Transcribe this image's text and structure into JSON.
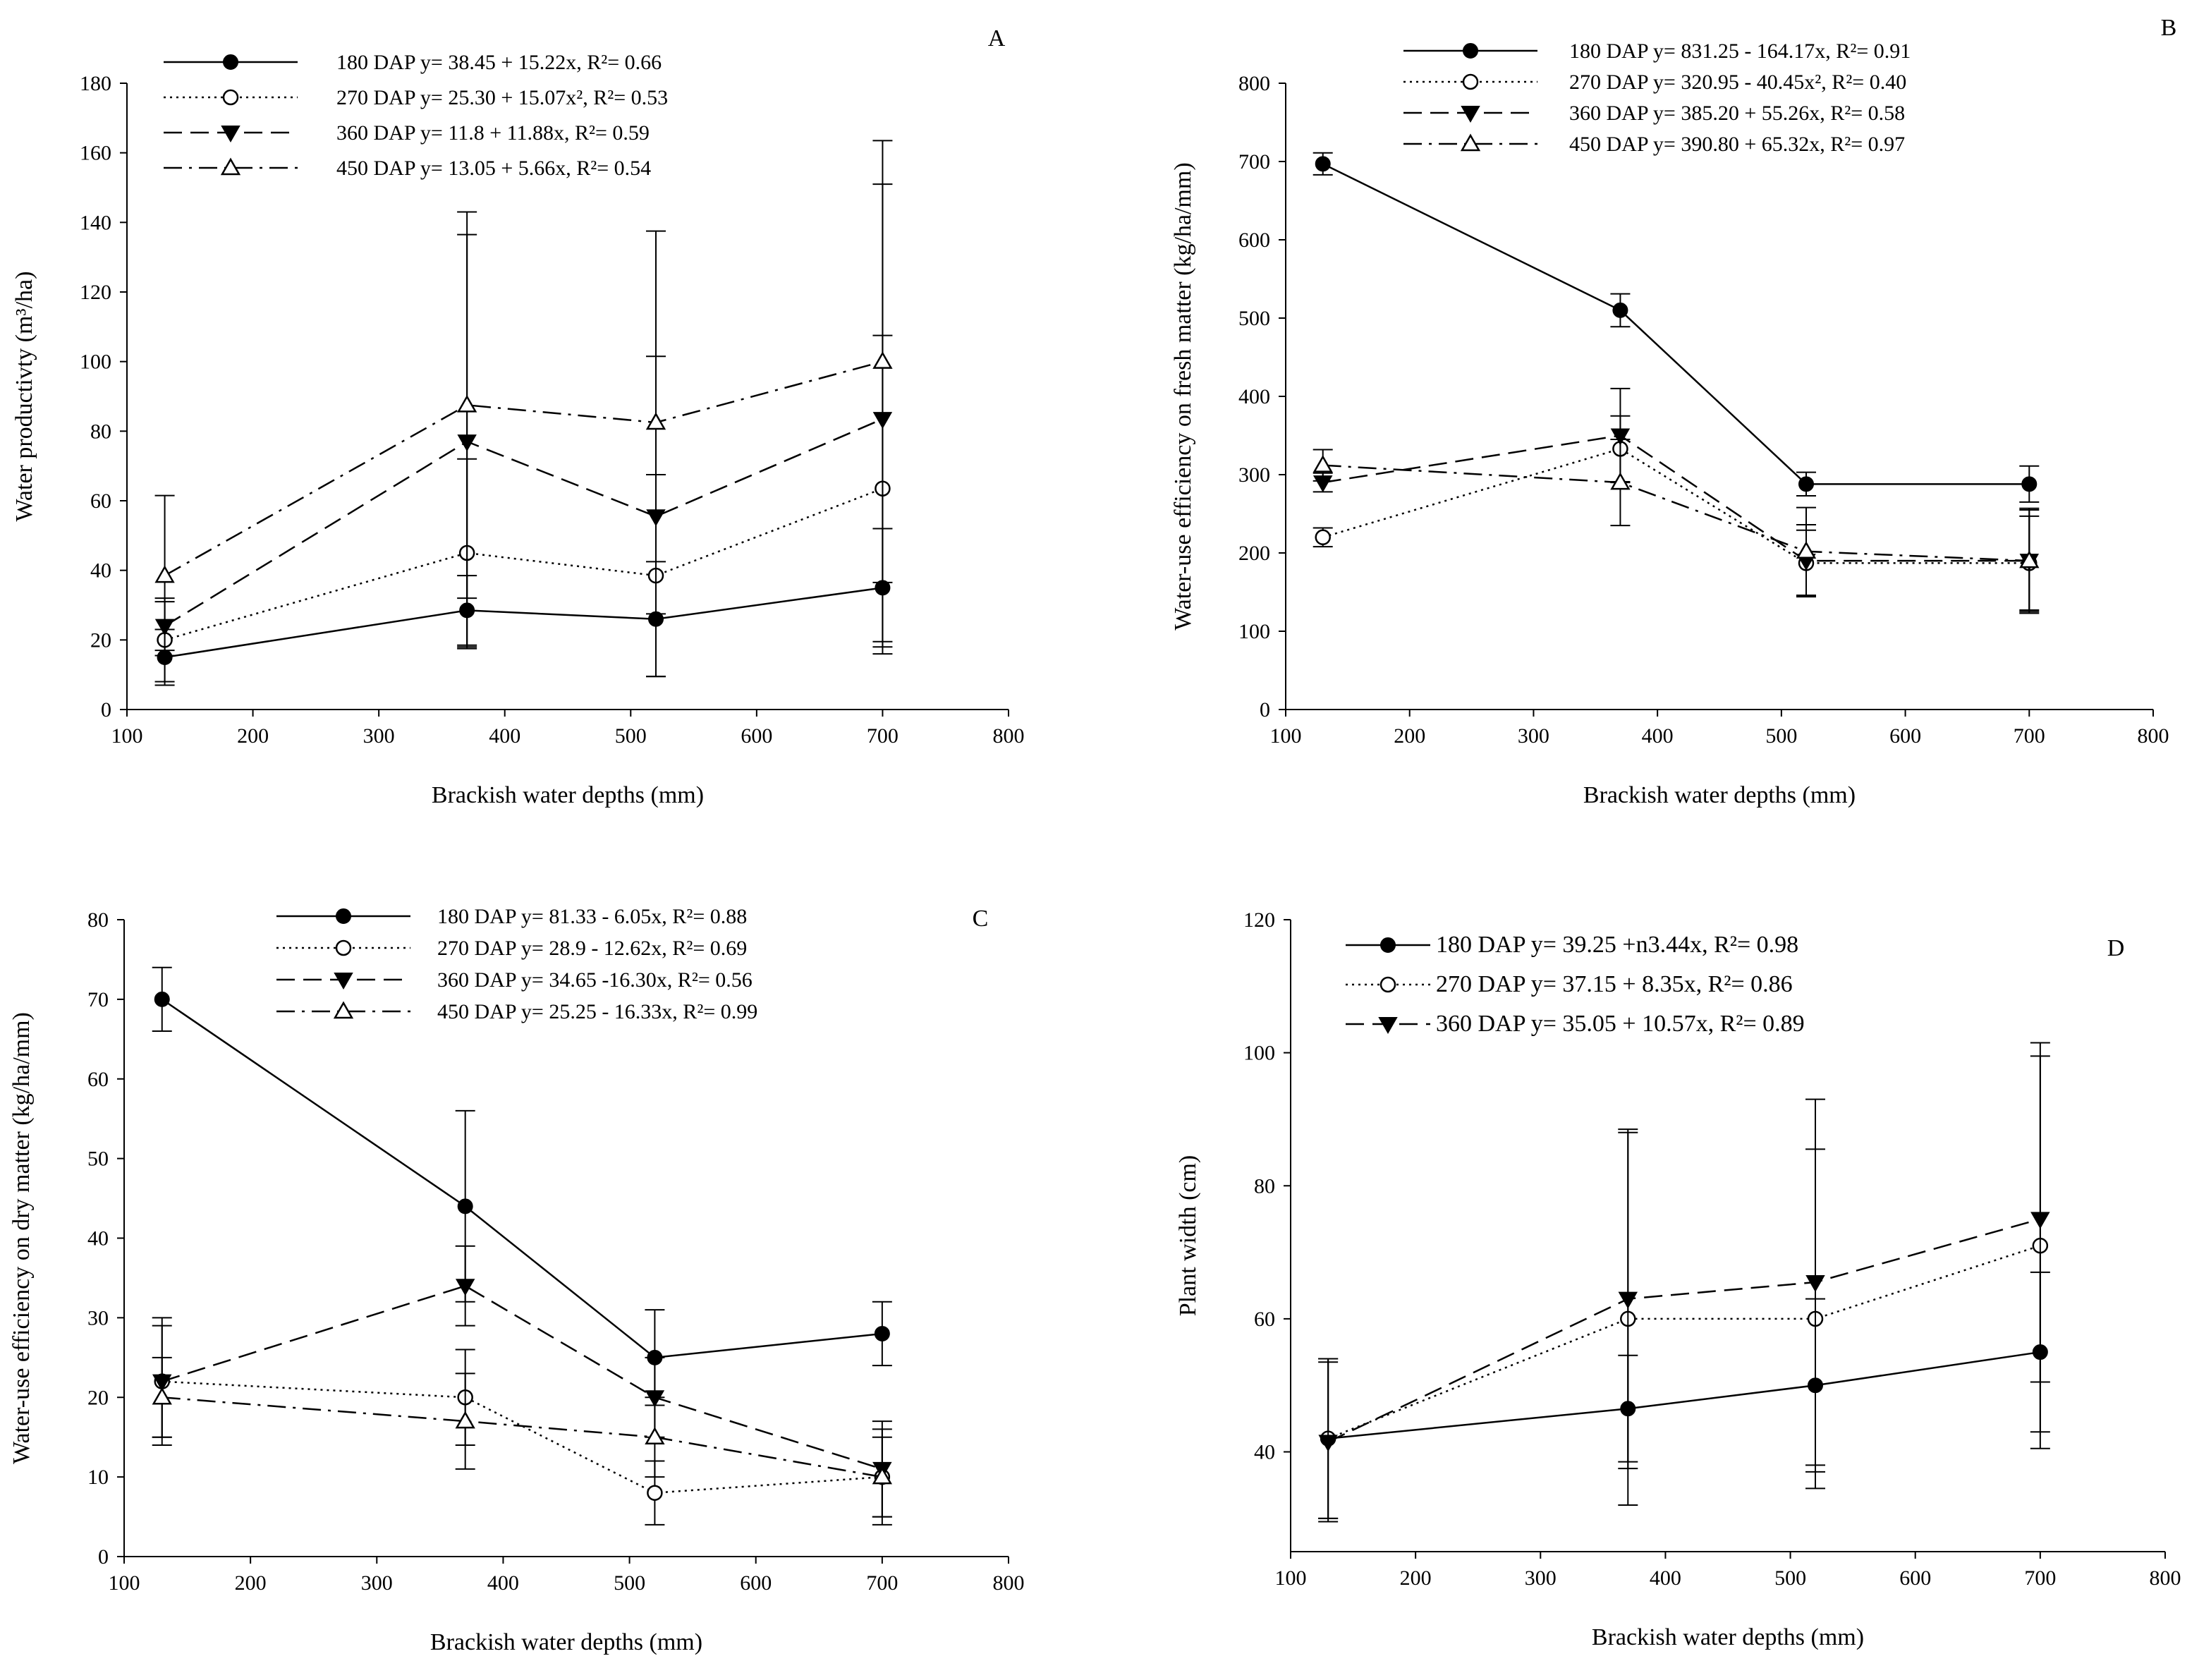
{
  "chart_data": [
    {
      "type": "line",
      "panel": "A",
      "xlabel": "Brackish water depths (mm)",
      "ylabel": "Water productivty (m³/ha)",
      "xlim": [
        100,
        800
      ],
      "ylim": [
        0,
        180
      ],
      "xticks": [
        100,
        200,
        300,
        400,
        500,
        600,
        700,
        800
      ],
      "yticks": [
        0,
        20,
        40,
        60,
        80,
        100,
        120,
        140,
        160,
        180
      ],
      "x": [
        130,
        370,
        520,
        700
      ],
      "series": [
        {
          "name": "180 DAP",
          "legend": "180 DAP y= 38.45 + 15.22x, R²= 0.66",
          "style": "solid",
          "marker": "filled-circle",
          "values": [
            15,
            28.5,
            26,
            35
          ],
          "err": [
            8,
            10,
            16.5,
            17
          ]
        },
        {
          "name": "270 DAP",
          "legend": "270 DAP y= 25.30 + 15.07x², R²= 0.53",
          "style": "dotted",
          "marker": "open-circle",
          "values": [
            20,
            45,
            38.5,
            63.5
          ],
          "err": [
            12,
            27,
            29,
            44
          ]
        },
        {
          "name": "360 DAP",
          "legend": "360 DAP y=  11.8 + 11.88x, R²= 0.59",
          "style": "dashed",
          "marker": "filled-triangle-down",
          "values": [
            24,
            77,
            55.5,
            83.5
          ],
          "err": [
            7,
            59.5,
            46,
            67.5
          ]
        },
        {
          "name": "450 DAP",
          "legend": "450 DAP y= 13.05 + 5.66x, R²= 0.54",
          "style": "dashdot",
          "marker": "open-triangle-up",
          "values": [
            38.5,
            87.5,
            82.5,
            100
          ],
          "err": [
            23,
            55.5,
            55,
            63.5
          ]
        }
      ]
    },
    {
      "type": "line",
      "panel": "B",
      "xlabel": "Brackish water depths (mm)",
      "ylabel": "Water-use efficiency on fresh matter (kg/ha/mm)",
      "xlim": [
        100,
        800
      ],
      "ylim": [
        0,
        800
      ],
      "xticks": [
        100,
        200,
        300,
        400,
        500,
        600,
        700,
        800
      ],
      "yticks": [
        0,
        100,
        200,
        300,
        400,
        500,
        600,
        700,
        800
      ],
      "x": [
        130,
        370,
        520,
        700
      ],
      "series": [
        {
          "name": "180 DAP",
          "legend": "180 DAP y= 831.25 - 164.17x, R²= 0.91",
          "style": "solid",
          "marker": "filled-circle",
          "values": [
            697,
            510,
            288,
            288
          ],
          "err": [
            14,
            21,
            15,
            23
          ]
        },
        {
          "name": "270 DAP",
          "legend": "270 DAP y= 320.95 - 40.45x², R²= 0.40",
          "style": "dotted",
          "marker": "open-circle",
          "values": [
            220,
            333,
            187,
            187
          ],
          "err": [
            12,
            42,
            42,
            60
          ]
        },
        {
          "name": "360 DAP",
          "legend": "360 DAP y=  385.20 + 55.26x, R²= 0.58",
          "style": "dashed",
          "marker": "filled-triangle-down",
          "values": [
            290,
            350,
            190,
            190
          ],
          "err": [
            12,
            60,
            46,
            65
          ]
        },
        {
          "name": "450 DAP",
          "legend": "450 DAP y= 390.80 + 65.32x, R²= 0.97",
          "style": "dashdot",
          "marker": "open-triangle-up",
          "values": [
            312,
            290,
            202,
            190
          ],
          "err": [
            20,
            55,
            56,
            67
          ]
        }
      ]
    },
    {
      "type": "line",
      "panel": "C",
      "xlabel": "Brackish water depths (mm)",
      "ylabel": "Water-use efficiency on dry matter (kg/ha/mm)",
      "xlim": [
        100,
        800
      ],
      "ylim": [
        0,
        80
      ],
      "xticks": [
        100,
        200,
        300,
        400,
        500,
        600,
        700,
        800
      ],
      "yticks": [
        0,
        10,
        20,
        30,
        40,
        50,
        60,
        70,
        80
      ],
      "x": [
        130,
        370,
        520,
        700
      ],
      "series": [
        {
          "name": "180 DAP",
          "legend": "180 DAP y= 81.33 - 6.05x, R²= 0.88",
          "style": "solid",
          "marker": "filled-circle",
          "values": [
            70,
            44,
            25,
            28
          ],
          "err": [
            4,
            12,
            6,
            4
          ]
        },
        {
          "name": "270 DAP",
          "legend": "270 DAP y= 28.9 - 12.62x, R²= 0.69",
          "style": "dotted",
          "marker": "open-circle",
          "values": [
            22,
            20,
            8,
            10
          ],
          "err": [
            7,
            6,
            4,
            5
          ]
        },
        {
          "name": "360 DAP",
          "legend": "360 DAP y=  34.65 -16.30x, R²= 0.56",
          "style": "dashed",
          "marker": "filled-triangle-down",
          "values": [
            22,
            34,
            20,
            11
          ],
          "err": [
            8,
            5,
            5,
            6
          ]
        },
        {
          "name": "450 DAP",
          "legend": "450 DAP y= 25.25 - 16.33x, R²= 0.99",
          "style": "dashdot",
          "marker": "open-triangle-up",
          "values": [
            20,
            17,
            15,
            10
          ],
          "err": [
            5,
            6,
            5,
            6
          ]
        }
      ]
    },
    {
      "type": "line",
      "panel": "D",
      "xlabel": "Brackish water depths (mm)",
      "ylabel": "Plant width (cm)",
      "xlim": [
        100,
        800
      ],
      "ylim": [
        25,
        120
      ],
      "xticks": [
        100,
        200,
        300,
        400,
        500,
        600,
        700,
        800
      ],
      "yticks": [
        40,
        60,
        80,
        100,
        120
      ],
      "x": [
        130,
        370,
        520,
        700
      ],
      "series": [
        {
          "name": "180 DAP",
          "legend": "180 DAP y= 39.25 +n3.44x, R²= 0.98",
          "style": "solid",
          "marker": "filled-circle",
          "values": [
            42,
            46.5,
            50,
            55
          ],
          "err": [
            12,
            8,
            13,
            12
          ]
        },
        {
          "name": "270 DAP",
          "legend": "270 DAP y= 37.15 + 8.35x, R²= 0.86",
          "style": "dotted",
          "marker": "open-circle",
          "values": [
            42,
            60,
            60,
            71
          ],
          "err": [
            12,
            28,
            25.5,
            30.5
          ]
        },
        {
          "name": "360 DAP",
          "legend": "360 DAP y= 35.05 + 10.57x, R²= 0.89",
          "style": "dashed",
          "marker": "filled-triangle-down",
          "values": [
            41.5,
            63,
            65.5,
            75
          ],
          "err": [
            12,
            25.5,
            27.5,
            24.5
          ]
        }
      ]
    }
  ]
}
